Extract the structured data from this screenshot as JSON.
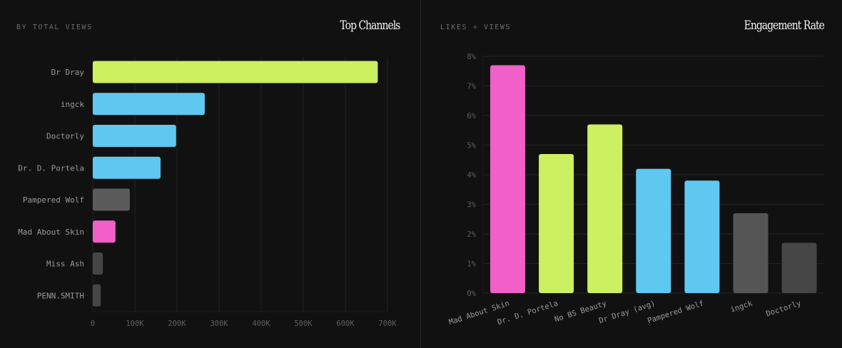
{
  "colors": {
    "background": "#111111",
    "lime": "#cdf060",
    "blue": "#5ec8f0",
    "pink": "#f060c8",
    "gray": "#5a5a5a",
    "gray_dark": "#555555",
    "gray_darker": "#464646",
    "grid": "#222222",
    "text": "#9a9a9a",
    "tick": "#5e5e5e"
  },
  "chart_data": [
    {
      "type": "bar",
      "orientation": "horizontal",
      "subtitle": "BY TOTAL VIEWS",
      "title": "Top Channels",
      "categories": [
        "Dr Dray",
        "ingck",
        "Doctorly",
        "Dr. D. Portela",
        "Pampered Wolf",
        "Mad About Skin",
        "Miss Ash",
        "PENN.SMITH"
      ],
      "values": [
        677000,
        266000,
        198000,
        161000,
        88000,
        54000,
        24000,
        19000
      ],
      "bar_colors": [
        "#cdf060",
        "#5ec8f0",
        "#5ec8f0",
        "#5ec8f0",
        "#5a5a5a",
        "#f060c8",
        "#464646",
        "#464646"
      ],
      "xlim": [
        0,
        700000
      ],
      "xticks": [
        "0",
        "100K",
        "200K",
        "300K",
        "400K",
        "500K",
        "600K",
        "700K"
      ],
      "grid": "vertical"
    },
    {
      "type": "bar",
      "orientation": "vertical",
      "subtitle": "LIKES ÷ VIEWS",
      "title": "Engagement Rate",
      "categories": [
        "Mad About Skin",
        "Dr. D. Portela",
        "No BS Beauty",
        "Dr Dray (avg)",
        "Pampered Wolf",
        "ingck",
        "Doctorly"
      ],
      "values": [
        7.7,
        4.7,
        5.7,
        4.2,
        3.8,
        2.7,
        1.7
      ],
      "bar_colors": [
        "#f060c8",
        "#cdf060",
        "#cdf060",
        "#5ec8f0",
        "#5ec8f0",
        "#555555",
        "#464646"
      ],
      "ylim": [
        0,
        8
      ],
      "yticks": [
        "0%",
        "1%",
        "2%",
        "3%",
        "4%",
        "5%",
        "6%",
        "7%",
        "8%"
      ],
      "grid": "horizontal"
    }
  ]
}
